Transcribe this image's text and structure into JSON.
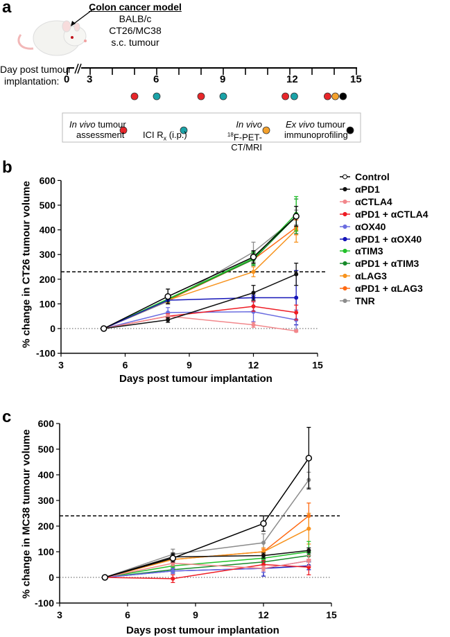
{
  "panel_a": {
    "letter": "a",
    "model_title": "Colon cancer model",
    "model_lines": [
      "BALB/c",
      "CT26/MC38",
      "s.c. tumour"
    ],
    "timeline_label_1": "Day post tumour",
    "timeline_label_2": "implantation:",
    "ticks": [
      "0",
      "3",
      "6",
      "9",
      "12",
      "15"
    ],
    "events": [
      {
        "day": 5,
        "type": "assessment"
      },
      {
        "day": 6,
        "type": "ici"
      },
      {
        "day": 8,
        "type": "assessment"
      },
      {
        "day": 9,
        "type": "ici"
      },
      {
        "day": 11.8,
        "type": "assessment"
      },
      {
        "day": 12.2,
        "type": "ici"
      },
      {
        "day": 13.7,
        "type": "assessment"
      },
      {
        "day": 14.05,
        "type": "pet"
      },
      {
        "day": 14.4,
        "type": "exvivo"
      }
    ],
    "colors": {
      "assessment": "#e8262a",
      "ici": "#1aa3a8",
      "pet": "#f4a12c",
      "exvivo": "#000000"
    },
    "legend": {
      "assessment_italic": "In vivo",
      "assessment_1": " tumour",
      "assessment_2": "assessment",
      "ici_main": "ICI R",
      "ici_sub": "x",
      "ici_rest": " (i.p.)",
      "pet_italic": "In vivo",
      "pet_sup": "18",
      "pet_rest": "F-PET-CT/MRI",
      "exvivo_italic": "Ex vivo",
      "exvivo_1": " tumour",
      "exvivo_2": "immunoprofiling"
    }
  },
  "legend_series": [
    "Control",
    "αPD1",
    "αCTLA4",
    "αPD1 + αCTLA4",
    "αOX40",
    "αPD1 + αOX40",
    "αTIM3",
    "αPD1 + αTIM3",
    "αLAG3",
    "αPD1 + αLAG3",
    "TNR"
  ],
  "chart_data": [
    {
      "letter": "b",
      "type": "line",
      "xlabel": "Days post tumour implantation",
      "ylabel": "% change in CT26 tumour volume",
      "xlim": [
        3,
        15
      ],
      "ylim": [
        -100,
        600
      ],
      "xticks": [
        3,
        6,
        9,
        12,
        15
      ],
      "yticks": [
        -100,
        0,
        100,
        200,
        300,
        400,
        500,
        600
      ],
      "threshold": 230,
      "x": [
        5,
        8,
        12,
        14
      ],
      "series": [
        {
          "name": "Control",
          "color": "#000000",
          "open": true,
          "values": [
            0,
            130,
            290,
            455
          ],
          "err": [
            0,
            30,
            25,
            40
          ]
        },
        {
          "name": "αPD1",
          "color": "#111111",
          "values": [
            0,
            35,
            145,
            220
          ],
          "err": [
            0,
            10,
            30,
            45
          ]
        },
        {
          "name": "αCTLA4",
          "color": "#f2878b",
          "values": [
            0,
            50,
            15,
            -10
          ],
          "err": [
            0,
            8,
            10,
            4
          ]
        },
        {
          "name": "αPD1 + αCTLA4",
          "color": "#ee1c24",
          "values": [
            0,
            50,
            90,
            65
          ],
          "err": [
            0,
            10,
            20,
            30
          ]
        },
        {
          "name": "αOX40",
          "color": "#6b6de0",
          "values": [
            0,
            65,
            68,
            35
          ],
          "err": [
            0,
            20,
            40,
            40
          ]
        },
        {
          "name": "αPD1 + αOX40",
          "color": "#1515b8",
          "values": [
            0,
            115,
            125,
            125
          ],
          "err": [
            0,
            15,
            10,
            110
          ]
        },
        {
          "name": "αTIM3",
          "color": "#22c12a",
          "values": [
            0,
            120,
            285,
            465
          ],
          "err": [
            0,
            10,
            25,
            70
          ]
        },
        {
          "name": "αPD1 + αTIM3",
          "color": "#178a2a",
          "values": [
            0,
            118,
            280,
            455
          ],
          "err": [
            0,
            10,
            25,
            70
          ]
        },
        {
          "name": "αLAG3",
          "color": "#f7931e",
          "values": [
            0,
            115,
            230,
            400
          ],
          "err": [
            0,
            10,
            20,
            50
          ]
        },
        {
          "name": "αPD1 + αLAG3",
          "color": "#ff6a13",
          "values": [
            0,
            115,
            280,
            410
          ],
          "err": [
            0,
            10,
            20,
            30
          ]
        },
        {
          "name": "TNR",
          "color": "#8c8c8c",
          "values": [
            0,
            110,
            310,
            450
          ],
          "err": [
            0,
            10,
            40,
            30
          ]
        }
      ]
    },
    {
      "letter": "c",
      "type": "line",
      "xlabel": "Days post tumour implantation",
      "ylabel": "% change in MC38 tumour volume",
      "xlim": [
        3,
        15
      ],
      "ylim": [
        -100,
        600
      ],
      "xticks": [
        3,
        6,
        9,
        12,
        15
      ],
      "yticks": [
        -100,
        0,
        100,
        200,
        300,
        400,
        500,
        600
      ],
      "threshold": 240,
      "x": [
        5,
        8,
        12,
        14
      ],
      "series": [
        {
          "name": "Control",
          "color": "#000000",
          "open": true,
          "values": [
            0,
            75,
            210,
            465
          ],
          "err": [
            0,
            15,
            30,
            120
          ]
        },
        {
          "name": "αPD1",
          "color": "#111111",
          "values": [
            0,
            80,
            85,
            105
          ],
          "err": [
            0,
            15,
            10,
            10
          ]
        },
        {
          "name": "αCTLA4",
          "color": "#f2878b",
          "values": [
            0,
            55,
            35,
            65
          ],
          "err": [
            0,
            10,
            10,
            20
          ]
        },
        {
          "name": "αPD1 + αCTLA4",
          "color": "#ee1c24",
          "values": [
            0,
            -5,
            50,
            40
          ],
          "err": [
            0,
            15,
            15,
            30
          ]
        },
        {
          "name": "αOX40",
          "color": "#6b6de0",
          "values": [
            0,
            25,
            35,
            65
          ],
          "err": [
            0,
            10,
            15,
            20
          ]
        },
        {
          "name": "αPD1 + αOX40",
          "color": "#1515b8",
          "values": [
            0,
            25,
            35,
            45
          ],
          "err": [
            0,
            10,
            30,
            15
          ]
        },
        {
          "name": "αTIM3",
          "color": "#22c12a",
          "values": [
            0,
            45,
            75,
            100
          ],
          "err": [
            0,
            10,
            10,
            40
          ]
        },
        {
          "name": "αPD1 + αTIM3",
          "color": "#178a2a",
          "values": [
            0,
            30,
            60,
            85
          ],
          "err": [
            0,
            10,
            10,
            20
          ]
        },
        {
          "name": "αLAG3",
          "color": "#f7931e",
          "values": [
            0,
            70,
            100,
            190
          ],
          "err": [
            0,
            10,
            15,
            60
          ]
        },
        {
          "name": "αPD1 + αLAG3",
          "color": "#ff6a13",
          "values": [
            0,
            70,
            100,
            240
          ],
          "err": [
            0,
            10,
            10,
            50
          ]
        },
        {
          "name": "TNR",
          "color": "#8c8c8c",
          "values": [
            0,
            90,
            135,
            380
          ],
          "err": [
            0,
            20,
            35,
            30
          ]
        }
      ]
    }
  ]
}
